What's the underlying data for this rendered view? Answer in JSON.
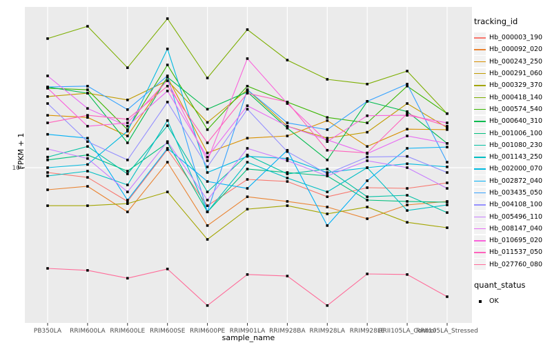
{
  "axes": {
    "x_title": "sample_name",
    "y_title": "FPKM + 1",
    "y_tick_label": "10"
  },
  "legend": {
    "tracking_title": "tracking_id",
    "quant_title": "quant_status",
    "quant_ok_label": "OK"
  },
  "colors": {
    "panel_bg": "#EBEBEB",
    "gridline": "#FFFFFF",
    "tick": "#333333",
    "axis_text": "#4D4D4D",
    "point": "#000000"
  },
  "chart_data": {
    "type": "line",
    "xlabel": "sample_name",
    "ylabel": "FPKM + 1",
    "y_scale": "log10",
    "y_breaks": [
      10
    ],
    "grid": "major",
    "legend_position": "right",
    "categories": [
      "PB350LA",
      "RRIM600LA",
      "RRIM600LE",
      "RRIM600SE",
      "RRIM600PE",
      "RRIM901LA",
      "RRIM928BA",
      "RRIM928LA",
      "RRIM928LE",
      "RRII105LA_Control",
      "RRII105LA_Stressed"
    ],
    "series": [
      {
        "name": "Hb_000003_190",
        "color": "#F8766D",
        "values": [
          9.42,
          8.87,
          6.59,
          12.5,
          6.25,
          8.65,
          8.43,
          6.98,
          7.81,
          7.74,
          8.29
        ]
      },
      {
        "name": "Hb_000092_020",
        "color": "#EA8331",
        "values": [
          7.61,
          7.94,
          5.79,
          10.7,
          4.89,
          6.98,
          6.59,
          6.15,
          5.32,
          6.31,
          6.59
        ]
      },
      {
        "name": "Hb_000243_250",
        "color": "#D89000",
        "values": [
          19.1,
          18.6,
          14.8,
          30.6,
          12.0,
          14.4,
          14.8,
          17.9,
          13.0,
          16.1,
          16.0
        ]
      },
      {
        "name": "Hb_000291_060",
        "color": "#C09B00",
        "values": [
          24.1,
          25.1,
          23.1,
          29.3,
          17.5,
          26.2,
          16.7,
          14.4,
          15.5,
          22.1,
          16.4
        ]
      },
      {
        "name": "Hb_000329_370",
        "color": "#A3A500",
        "values": [
          6.25,
          6.25,
          6.41,
          7.41,
          4.12,
          5.99,
          6.25,
          5.65,
          6.15,
          5.09,
          4.76
        ]
      },
      {
        "name": "Hb_000418_140",
        "color": "#7CAE00",
        "values": [
          49.3,
          57.4,
          34.4,
          63.1,
          30.3,
          55.1,
          37.8,
          29.8,
          28.1,
          33.0,
          19.5
        ]
      },
      {
        "name": "Hb_000574_540",
        "color": "#39B600",
        "values": [
          26.7,
          26.2,
          16.0,
          35.6,
          16.0,
          27.4,
          22.5,
          18.6,
          17.4,
          27.4,
          19.5
        ]
      },
      {
        "name": "Hb_000640_310",
        "color": "#00BB4E",
        "values": [
          27.1,
          25.1,
          13.6,
          30.6,
          20.6,
          25.5,
          16.3,
          11.0,
          22.7,
          20.0,
          13.5
        ]
      },
      {
        "name": "Hb_001006_100",
        "color": "#00BF7D",
        "values": [
          11.0,
          11.7,
          9.58,
          13.6,
          5.79,
          9.83,
          9.42,
          9.03,
          6.7,
          6.59,
          6.53
        ]
      },
      {
        "name": "Hb_001080_230",
        "color": "#00C1A3",
        "values": [
          11.4,
          13.0,
          9.26,
          16.8,
          7.41,
          11.7,
          9.26,
          9.83,
          6.98,
          7.11,
          5.74
        ]
      },
      {
        "name": "Hb_001143_250",
        "color": "#00BFC4",
        "values": [
          9.03,
          9.58,
          8.08,
          17.9,
          5.79,
          10.7,
          8.8,
          7.41,
          10.0,
          5.89,
          6.31
        ]
      },
      {
        "name": "Hb_002000_070",
        "color": "#00BAE0",
        "values": [
          10.0,
          10.4,
          15.7,
          43.4,
          9.42,
          11.5,
          11.2,
          9.42,
          10.0,
          10.5,
          10.1
        ]
      },
      {
        "name": "Hb_002872_040",
        "color": "#00B0F6",
        "values": [
          15.1,
          14.4,
          6.7,
          12.7,
          8.43,
          7.74,
          12.4,
          4.89,
          8.51,
          12.7,
          12.9
        ]
      },
      {
        "name": "Hb_003435_050",
        "color": "#35A2FF",
        "values": [
          27.1,
          27.4,
          20.5,
          31.1,
          5.79,
          26.2,
          17.4,
          16.0,
          22.7,
          28.1,
          10.7
        ]
      },
      {
        "name": "Hb_004108_100",
        "color": "#9590FF",
        "values": [
          22.1,
          13.8,
          11.0,
          22.5,
          10.1,
          20.6,
          12.2,
          9.26,
          11.4,
          11.5,
          9.42
        ]
      },
      {
        "name": "Hb_005496_110",
        "color": "#C77CFF",
        "values": [
          12.6,
          11.2,
          7.41,
          13.8,
          6.7,
          12.7,
          10.9,
          9.03,
          10.9,
          10.0,
          7.74
        ]
      },
      {
        "name": "Hb_008147_040",
        "color": "#E76BF3",
        "values": [
          31.1,
          20.8,
          16.7,
          25.8,
          11.4,
          21.5,
          16.7,
          14.1,
          11.9,
          14.8,
          13.5
        ]
      },
      {
        "name": "Hb_010695_020",
        "color": "#FA62DB",
        "values": [
          26.7,
          16.7,
          17.4,
          29.3,
          10.9,
          38.5,
          22.1,
          13.8,
          19.0,
          19.1,
          17.4
        ]
      },
      {
        "name": "Hb_011537_050",
        "color": "#FF62BC",
        "values": [
          17.4,
          19.1,
          18.2,
          27.4,
          13.6,
          25.1,
          22.5,
          12.4,
          12.0,
          19.5,
          16.7
        ]
      },
      {
        "name": "Hb_027760_080",
        "color": "#FF6A98",
        "values": [
          2.88,
          2.81,
          2.55,
          2.86,
          1.82,
          2.67,
          2.62,
          1.82,
          2.69,
          2.67,
          2.03
        ]
      }
    ]
  }
}
